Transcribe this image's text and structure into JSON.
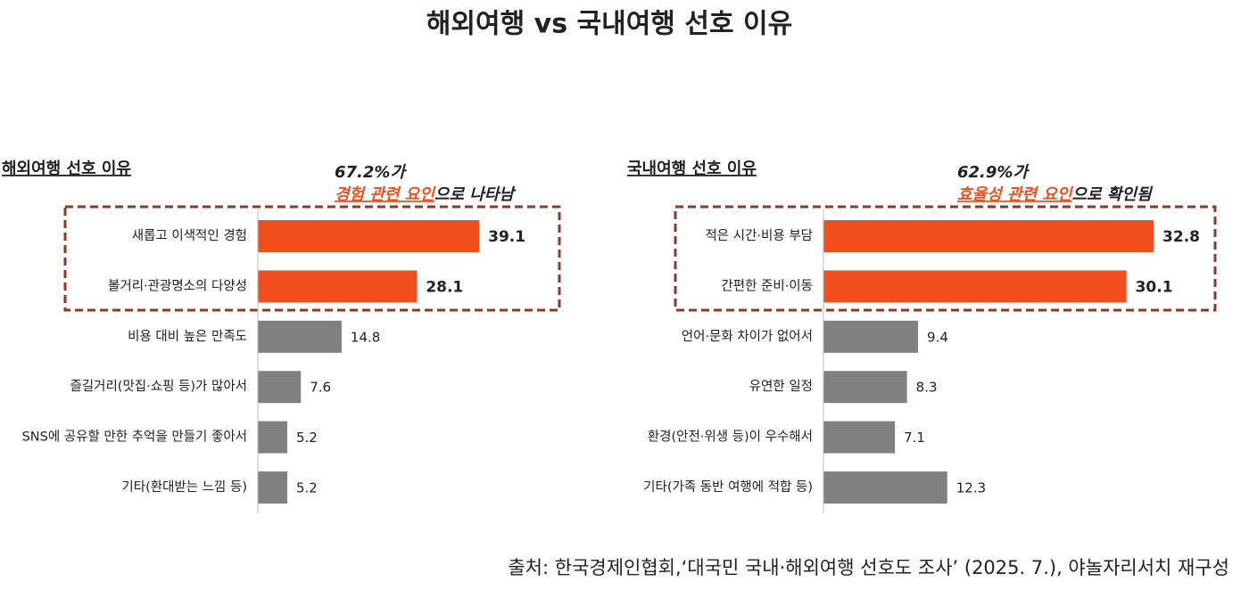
{
  "title": "해외여행 vs 국내여행 선호 이유",
  "source": "출처: 한국경제인협회,‘대국민 국내·해외여행 선호도 조사’ (2025. 7.), 야놀자리서치 재구성",
  "chart_data": [
    {
      "type": "bar",
      "orientation": "horizontal",
      "title": "해외여행 선호 이유",
      "annotation": {
        "line1": "67.2%가",
        "highlight": "경험 관련 요인",
        "rest": "으로 나타남"
      },
      "categories": [
        "새롭고 이색적인 경험",
        "볼거리·관광명소의 다양성",
        "비용 대비 높은 만족도",
        "즐길거리(맛집·쇼핑 등)가 많아서",
        "SNS에 공유할 만한 추억을 만들기 좋아서",
        "기타(환대받는 느낌 등)"
      ],
      "values": [
        39.1,
        28.1,
        14.8,
        7.6,
        5.2,
        5.2
      ],
      "colors": [
        "#f24e1e",
        "#f24e1e",
        "#808080",
        "#808080",
        "#808080",
        "#808080"
      ],
      "xlim": [
        0,
        52
      ]
    },
    {
      "type": "bar",
      "orientation": "horizontal",
      "title": "국내여행 선호 이유",
      "annotation": {
        "line1": "62.9%가",
        "highlight": "효율성 관련 요인",
        "rest": "으로 확인됨"
      },
      "categories": [
        "적은 시간·비용 부담",
        "간편한 준비·이동",
        "언어·문화 차이가 없어서",
        "유연한 일정",
        "환경(안전·위생 등)이 우수해서",
        "기타(가족 동반 여행에 적합 등)"
      ],
      "values": [
        32.8,
        30.1,
        9.4,
        8.3,
        7.1,
        12.3
      ],
      "colors": [
        "#f24e1e",
        "#f24e1e",
        "#808080",
        "#808080",
        "#808080",
        "#808080"
      ],
      "xlim": [
        0,
        39
      ]
    }
  ]
}
